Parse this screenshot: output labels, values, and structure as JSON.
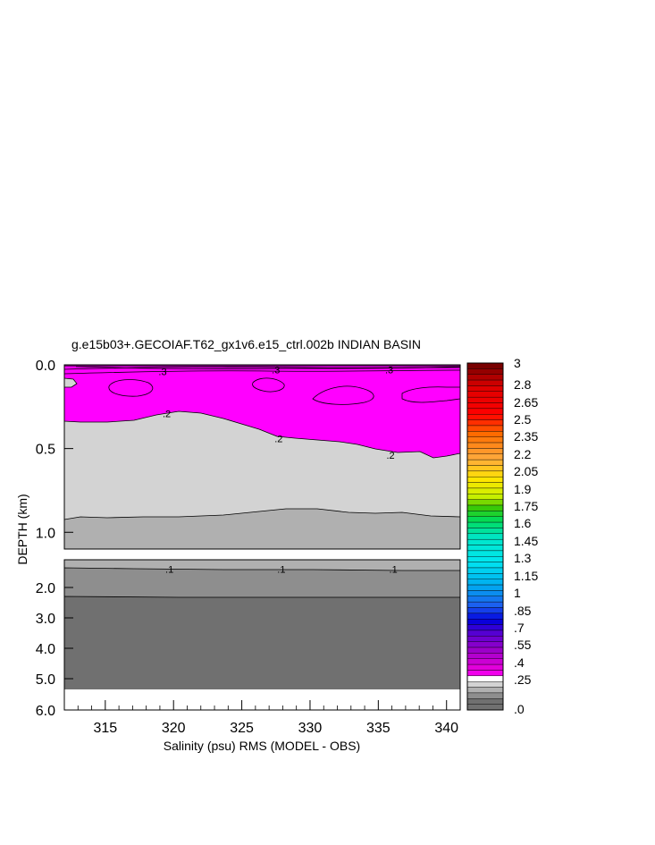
{
  "chart_data": {
    "type": "contour",
    "title": "g.e15b03+.GECOIAF.T62_gx1v6.e15_ctrl.002b INDIAN BASIN",
    "xlabel": "Salinity (psu) RMS (MODEL - OBS)",
    "ylabel": "DEPTH (km)",
    "x_ticks": [
      "315",
      "320",
      "325",
      "330",
      "335",
      "340"
    ],
    "x_tick_values": [
      315,
      320,
      325,
      330,
      335,
      340
    ],
    "xlim": [
      312,
      341
    ],
    "upper_panel": {
      "ylim": [
        0.0,
        1.1
      ],
      "y_ticks": [
        "0.0",
        "0.5",
        "1.0"
      ],
      "y_tick_values": [
        0.0,
        0.5,
        1.0
      ]
    },
    "lower_panel": {
      "ylim": [
        1.1,
        6.0
      ],
      "y_ticks": [
        "2.0",
        "3.0",
        "4.0",
        "5.0",
        "6.0"
      ],
      "y_tick_values": [
        2.0,
        3.0,
        4.0,
        5.0,
        6.0
      ]
    },
    "contour_labels": [
      {
        "text": ".3",
        "x": 319.2,
        "y": 0.04
      },
      {
        "text": ".3",
        "x": 327.5,
        "y": 0.03
      },
      {
        "text": ".3",
        "x": 335.8,
        "y": 0.03
      },
      {
        "text": ".2",
        "x": 319.5,
        "y": 0.29
      },
      {
        "text": ".2",
        "x": 327.7,
        "y": 0.44
      },
      {
        "text": ".2",
        "x": 335.9,
        "y": 0.54
      },
      {
        "text": ".1",
        "x": 319.7,
        "y": 1.41
      },
      {
        "text": ".1",
        "x": 327.9,
        "y": 1.41
      },
      {
        "text": ".1",
        "x": 336.1,
        "y": 1.41
      }
    ],
    "colorbar": {
      "labels": [
        "3",
        "2.8",
        "2.65",
        "2.5",
        "2.35",
        "2.2",
        "2.05",
        "1.9",
        "1.75",
        "1.6",
        "1.45",
        "1.3",
        "1.15",
        "1",
        ".85",
        ".7",
        ".55",
        ".4",
        ".25",
        ".0"
      ],
      "label_values": [
        3,
        2.8,
        2.65,
        2.5,
        2.35,
        2.2,
        2.05,
        1.9,
        1.75,
        1.6,
        1.45,
        1.3,
        1.15,
        1,
        0.85,
        0.7,
        0.55,
        0.4,
        0.25,
        0.0
      ]
    },
    "fill_colors": {
      "0.3_plus": "#7a007a",
      "0.25_0.3": "#ff00ff",
      "0.2_0.25": "#d3d3d3",
      "0.15_0.2": "#b0b0b0",
      "0.1_0.15": "#8e8e8e",
      "0_0.1": "#707070"
    }
  }
}
